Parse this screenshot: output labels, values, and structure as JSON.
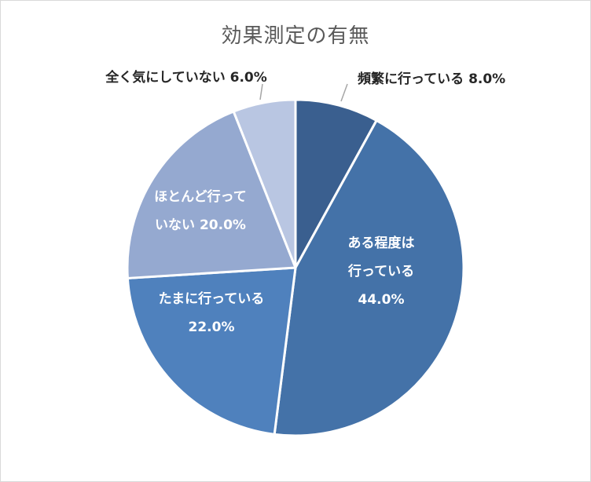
{
  "chart_data": {
    "type": "pie",
    "title": "効果測定の有無",
    "slices": [
      {
        "label_lines": [
          "頻繁に行っている 8.0%"
        ],
        "value": 8.0,
        "color": "#3A5F8F",
        "placement": "outside"
      },
      {
        "label_lines": [
          "ある程度は",
          "行っている",
          "44.0%"
        ],
        "value": 44.0,
        "color": "#4472A8",
        "placement": "inside"
      },
      {
        "label_lines": [
          "たまに行っている",
          "22.0%"
        ],
        "value": 22.0,
        "color": "#4F81BD",
        "placement": "inside"
      },
      {
        "label_lines": [
          "ほとんど行って",
          "いない 20.0%"
        ],
        "value": 20.0,
        "color": "#95A9D0",
        "placement": "inside"
      },
      {
        "label_lines": [
          "全く気にしていない 6.0%"
        ],
        "value": 6.0,
        "color": "#B9C6E2",
        "placement": "outside"
      }
    ]
  }
}
